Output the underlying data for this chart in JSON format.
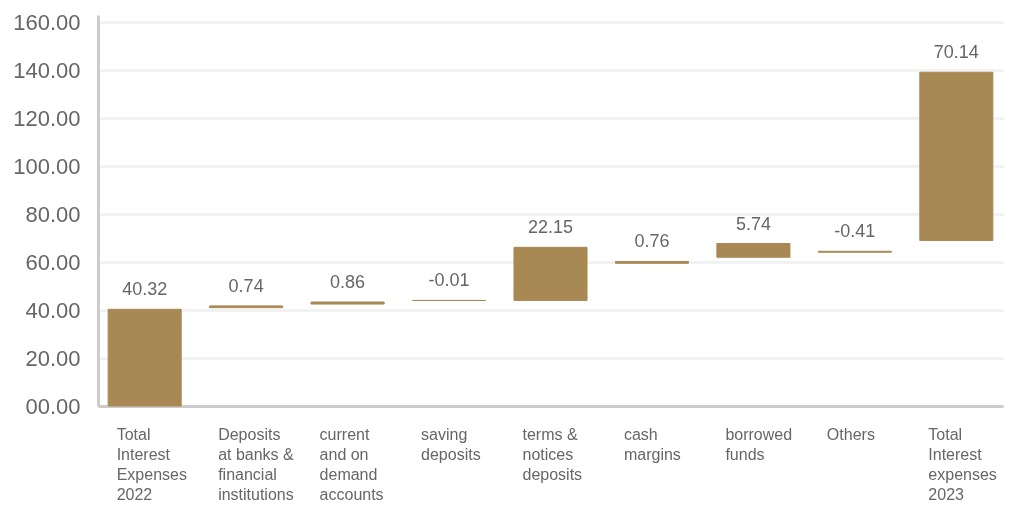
{
  "chart_data": {
    "type": "bar",
    "categories": [
      "Total Interest Expenses 2022",
      "Deposits at banks & financial institutions",
      "current and on demand accounts",
      "saving deposits",
      "terms & notices deposits",
      "cash margins",
      "borrowed funds",
      "Others",
      "Total Interest expenses 2023"
    ],
    "values": [
      40.32,
      0.74,
      0.86,
      -0.01,
      22.15,
      0.76,
      5.74,
      -0.41,
      70.14
    ],
    "base": [
      0,
      41,
      42.5,
      44,
      44,
      59.5,
      62,
      64.5,
      69
    ],
    "color": "#a88954",
    "ylim": [
      0,
      163
    ],
    "yticks": [
      {
        "value": 0,
        "label": "00.00"
      },
      {
        "value": 20,
        "label": "20.00"
      },
      {
        "value": 40,
        "label": "40.00"
      },
      {
        "value": 60,
        "label": "60.00"
      },
      {
        "value": 80,
        "label": "80.00"
      },
      {
        "value": 100,
        "label": "100.00"
      },
      {
        "value": 120,
        "label": "120.00"
      },
      {
        "value": 140,
        "label": "140.00"
      },
      {
        "value": 160,
        "label": "160.00"
      }
    ],
    "grid": "y",
    "data_labels": true
  }
}
